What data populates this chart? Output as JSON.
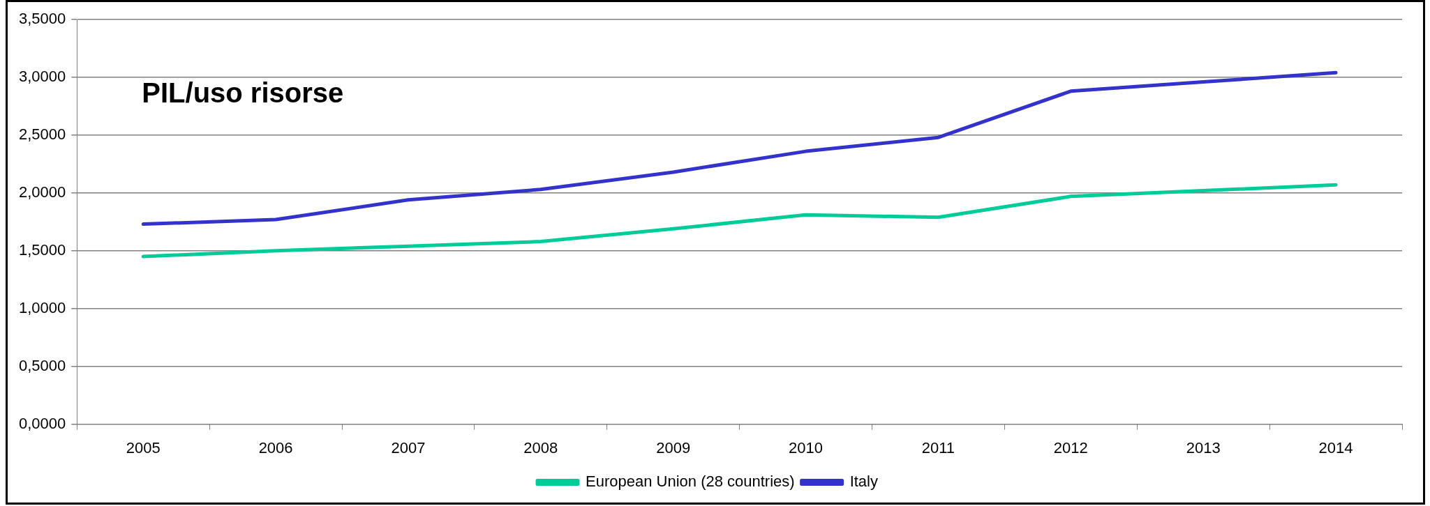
{
  "chart_data": {
    "type": "line",
    "title": "PIL/uso risorse",
    "categories": [
      "2005",
      "2006",
      "2007",
      "2008",
      "2009",
      "2010",
      "2011",
      "2012",
      "2013",
      "2014"
    ],
    "series": [
      {
        "name": "European Union (28 countries)",
        "color": "#00cc99",
        "values": [
          1.45,
          1.5,
          1.54,
          1.58,
          1.69,
          1.81,
          1.79,
          1.97,
          2.02,
          2.07
        ]
      },
      {
        "name": "Italy",
        "color": "#3333cc",
        "values": [
          1.73,
          1.77,
          1.94,
          2.03,
          2.18,
          2.36,
          2.48,
          2.88,
          2.96,
          3.04
        ]
      }
    ],
    "ylim": [
      0,
      3.5
    ],
    "yticks": [
      {
        "value": 0,
        "label": "0,0000"
      },
      {
        "value": 0.5,
        "label": "0,5000"
      },
      {
        "value": 1,
        "label": "1,0000"
      },
      {
        "value": 1.5,
        "label": "1,5000"
      },
      {
        "value": 2,
        "label": "2,0000"
      },
      {
        "value": 2.5,
        "label": "2,5000"
      },
      {
        "value": 3,
        "label": "3,0000"
      },
      {
        "value": 3.5,
        "label": "3,5000"
      }
    ],
    "grid": "y",
    "legend": "bottom",
    "marker": "none",
    "line_style": "solid"
  }
}
